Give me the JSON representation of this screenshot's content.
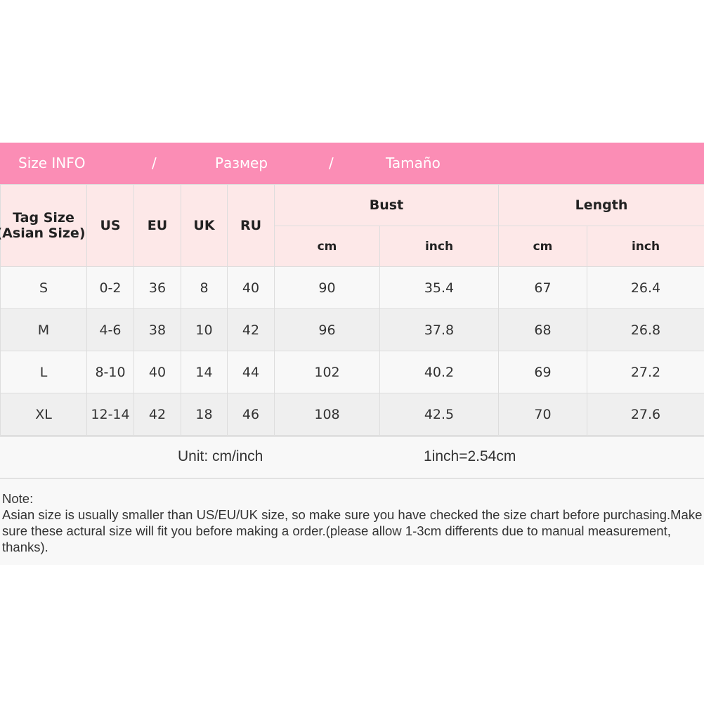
{
  "banner": {
    "title1": "Size INFO",
    "sep1": "/",
    "title2": "Размер",
    "sep2": "/",
    "title3": "Tamaño",
    "color": "#fb8db5"
  },
  "headers": {
    "tag": "Tag Size",
    "tag2": "(Asian Size)",
    "us": "US",
    "eu": "EU",
    "uk": "UK",
    "ru": "RU",
    "bust": "Bust",
    "length": "Length",
    "cm": "cm",
    "inch": "inch"
  },
  "rows": [
    [
      "S",
      "0-2",
      "36",
      "8",
      "40",
      "90",
      "35.4",
      "67",
      "26.4"
    ],
    [
      "M",
      "4-6",
      "38",
      "10",
      "42",
      "96",
      "37.8",
      "68",
      "26.8"
    ],
    [
      "L",
      "8-10",
      "40",
      "14",
      "44",
      "102",
      "40.2",
      "69",
      "27.2"
    ],
    [
      "XL",
      "12-14",
      "42",
      "18",
      "46",
      "108",
      "42.5",
      "70",
      "27.6"
    ]
  ],
  "unit": {
    "label": "Unit: cm/inch",
    "conversion": "1inch=2.54cm"
  },
  "note": {
    "title": "Note:",
    "text": "Asian size is usually smaller than US/EU/UK size, so make sure you have checked the size chart before purchasing.Make sure these actural size will fit you before making a order.(please allow 1-3cm differents due to manual measurement, thanks)."
  }
}
